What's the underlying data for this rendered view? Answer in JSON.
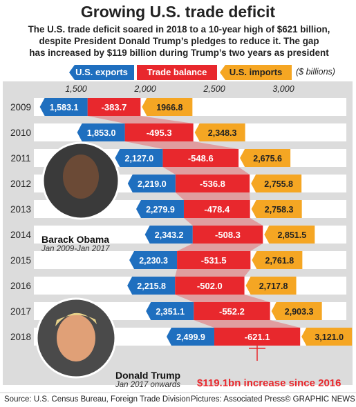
{
  "header": {
    "title": "Growing U.S. trade deficit",
    "subtitle_lines": [
      "The U.S. trade deficit soared in 2018 to a 10-year high of $621 billion,",
      "despite President Donald Trump’s pledges to reduce it. The gap",
      "has increased by $119 billion during Trump’s two years as president"
    ]
  },
  "legend": {
    "exports": "U.S. exports",
    "balance": "Trade balance",
    "imports": "U.S. imports",
    "unit": "($ billions)"
  },
  "colors": {
    "exports": "#1f6fbf",
    "balance": "#e8282d",
    "imports": "#f5a623",
    "row_bg": "#ffffff",
    "plot_bg": "#dcdcdc",
    "photo_bg": "#3a3a3a"
  },
  "chart_data": {
    "type": "bar",
    "x_ticks": [
      1500,
      2000,
      2500,
      3000
    ],
    "x_tick_labels": [
      "1,500",
      "2,000",
      "2,500",
      "3,000"
    ],
    "xlim": [
      1360,
      3260
    ],
    "categories": [
      "2009",
      "2010",
      "2011",
      "2012",
      "2013",
      "2014",
      "2015",
      "2016",
      "2017",
      "2018"
    ],
    "series": [
      {
        "name": "U.S. exports",
        "values": [
          1583.1,
          1853.0,
          2127.0,
          2219.0,
          2279.9,
          2343.2,
          2230.3,
          2215.8,
          2351.1,
          2499.9
        ],
        "labels": [
          "1,583.1",
          "1,853.0",
          "2,127.0",
          "2,219.0",
          "2,279.9",
          "2,343.2",
          "2,230.3",
          "2,215.8",
          "2,351.1",
          "2,499.9"
        ]
      },
      {
        "name": "Trade balance",
        "values": [
          -383.7,
          -495.3,
          -548.6,
          -536.8,
          -478.4,
          -508.3,
          -531.5,
          -502.0,
          -552.2,
          -621.1
        ],
        "labels": [
          "-383.7",
          "-495.3",
          "-548.6",
          "-536.8",
          "-478.4",
          "-508.3",
          "-531.5",
          "-502.0",
          "-552.2",
          "-621.1"
        ]
      },
      {
        "name": "U.S. imports",
        "values": [
          1966.8,
          2348.3,
          2675.6,
          2755.8,
          2758.3,
          2851.5,
          2761.8,
          2717.8,
          2903.3,
          3121.0
        ],
        "labels": [
          "1966.8",
          "2,348.3",
          "2,675.6",
          "2,755.8",
          "2,758.3",
          "2,851.5",
          "2,761.8",
          "2,717.8",
          "2,903.3",
          "3,121.0"
        ]
      }
    ]
  },
  "people": {
    "obama": {
      "name": "Barack Obama",
      "term": "Jan 2009-Jan 2017"
    },
    "trump": {
      "name": "Donald Trump",
      "term": "Jan 2017 onwards"
    }
  },
  "highlight": "$119.1bn increase since 2016",
  "footer": {
    "source": "Source: U.S. Census Bureau, Foreign Trade Division",
    "pictures": "Pictures: Associated Press",
    "credit": "© GRAPHIC NEWS"
  }
}
